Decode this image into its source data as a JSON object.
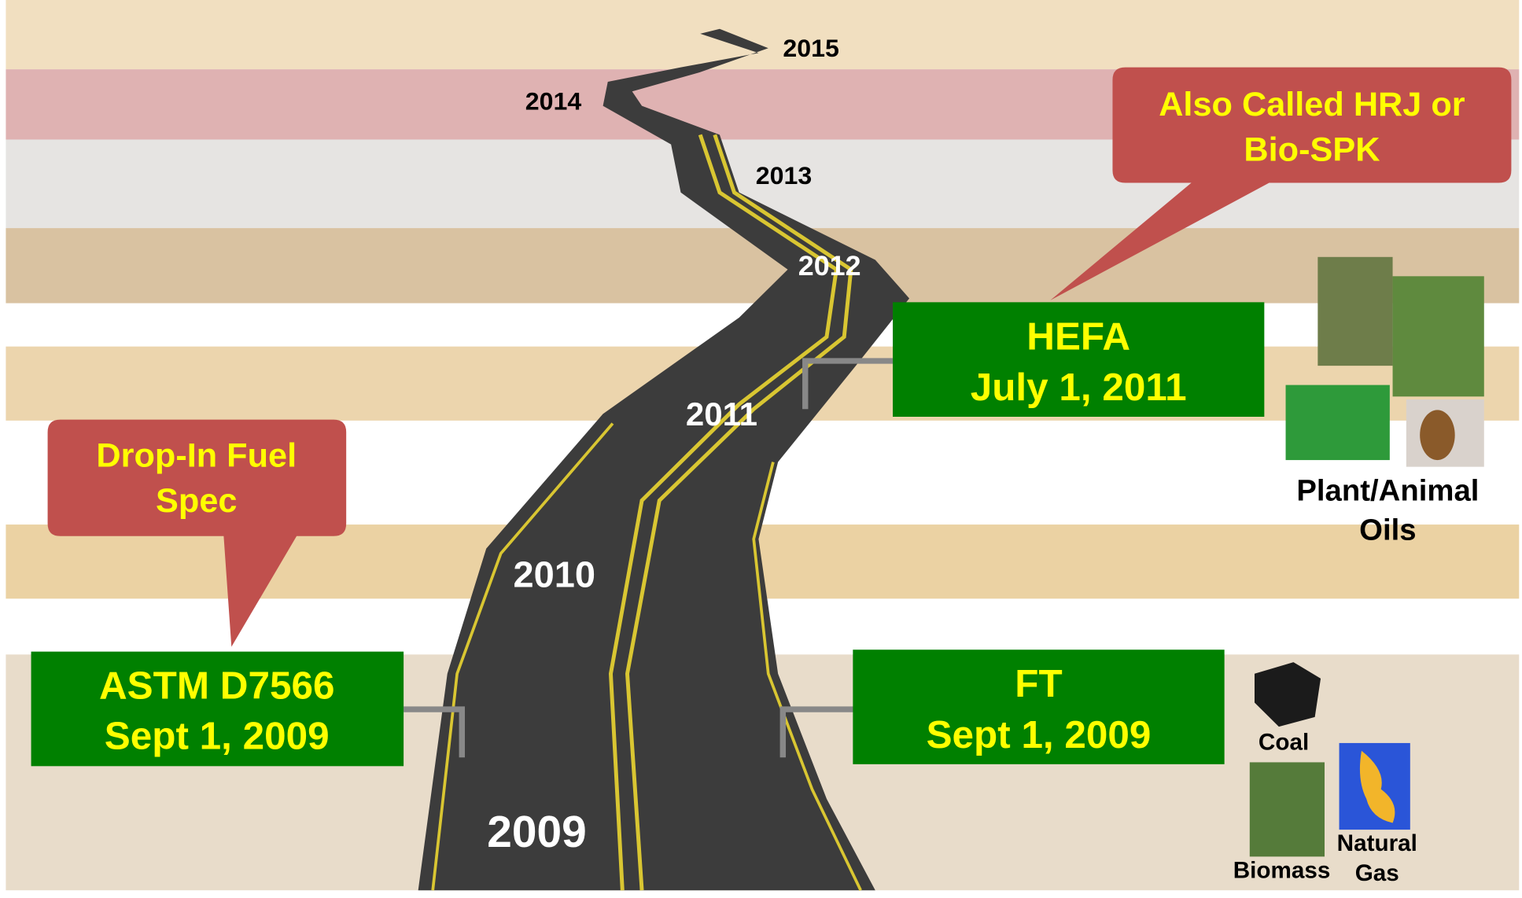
{
  "years": [
    "2009",
    "2010",
    "2011",
    "2012",
    "2013",
    "2014",
    "2015"
  ],
  "milestones": [
    {
      "title": "ASTM D7566",
      "date": "Sept 1, 2009"
    },
    {
      "title": "FT",
      "date": "Sept 1, 2009"
    },
    {
      "title": "HEFA",
      "date": "July 1, 2011"
    }
  ],
  "callouts": [
    {
      "lines": [
        "Drop-In Fuel",
        "Spec"
      ]
    },
    {
      "lines": [
        "Also Called HRJ or",
        "Bio-SPK"
      ]
    }
  ],
  "feedstocks": [
    {
      "lines": [
        "Plant/Animal",
        "Oils"
      ]
    },
    {
      "lines": [
        "Coal"
      ]
    },
    {
      "lines": [
        "Biomass"
      ]
    },
    {
      "lines": [
        "Natural",
        "Gas"
      ]
    }
  ]
}
